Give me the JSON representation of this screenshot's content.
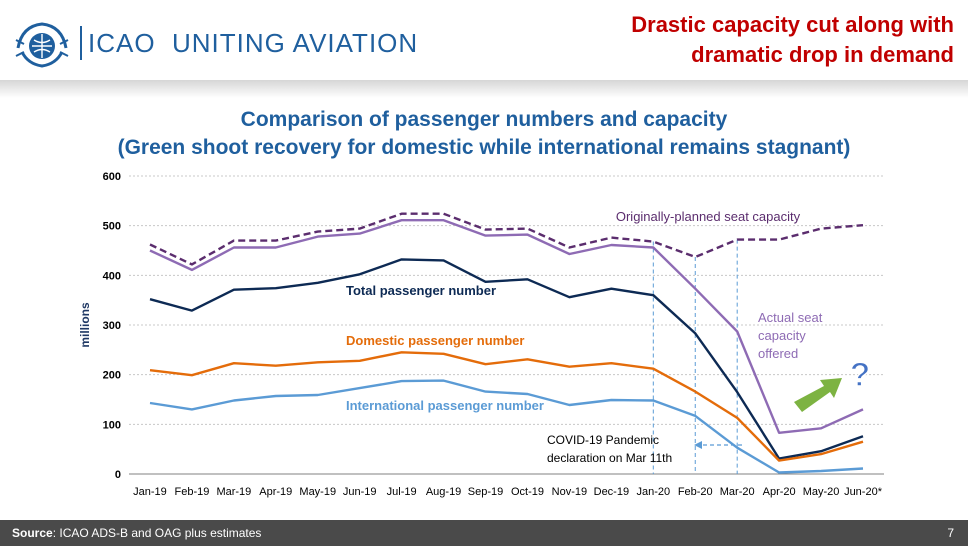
{
  "header": {
    "org": "ICAO",
    "tagline": "UNITING AVIATION",
    "headline_line1": "Drastic capacity cut along with",
    "headline_line2": "dramatic drop in demand"
  },
  "footer": {
    "source_label": "Source",
    "source_text": ": ICAO ADS-B and OAG plus estimates",
    "page_number": "7"
  },
  "colors": {
    "planned": "#5b2d6e",
    "actual": "#8e6bb4",
    "total": "#0d2a54",
    "domestic": "#e46c0a",
    "international": "#5b9bd5",
    "arrow": "#7db342",
    "question": "#4472c4"
  },
  "chart_data": {
    "type": "line",
    "title_line1": "Comparison of passenger numbers and capacity",
    "title_line2": "(Green shoot recovery for domestic while international remains stagnant)",
    "ylabel": "millions",
    "ylim": [
      0,
      600
    ],
    "yticks": [
      0,
      100,
      200,
      300,
      400,
      500,
      600
    ],
    "grid": true,
    "categories": [
      "Jan-19",
      "Feb-19",
      "Mar-19",
      "Apr-19",
      "May-19",
      "Jun-19",
      "Jul-19",
      "Aug-19",
      "Sep-19",
      "Oct-19",
      "Nov-19",
      "Dec-19",
      "Jan-20",
      "Feb-20",
      "Mar-20",
      "Apr-20",
      "May-20",
      "Jun-20*"
    ],
    "series": [
      {
        "key": "planned",
        "name": "Originally-planned seat capacity",
        "values": [
          462,
          422,
          470,
          470,
          488,
          494,
          524,
          524,
          492,
          494,
          456,
          476,
          468,
          437,
          472,
          472,
          494,
          501
        ]
      },
      {
        "key": "actual",
        "name": "Actual seat capacity offered",
        "values": [
          450,
          411,
          456,
          456,
          478,
          484,
          511,
          511,
          480,
          482,
          443,
          461,
          456,
          373,
          287,
          83,
          92,
          130
        ]
      },
      {
        "key": "total",
        "name": "Total passenger number",
        "values": [
          352,
          329,
          371,
          374,
          385,
          402,
          432,
          430,
          387,
          392,
          356,
          373,
          360,
          283,
          165,
          31,
          46,
          76
        ]
      },
      {
        "key": "domestic",
        "name": "Domestic passenger number",
        "values": [
          209,
          199,
          223,
          218,
          225,
          228,
          245,
          242,
          221,
          231,
          216,
          223,
          212,
          166,
          113,
          27,
          40,
          65
        ]
      },
      {
        "key": "international",
        "name": "International passenger number",
        "values": [
          143,
          130,
          148,
          157,
          159,
          173,
          187,
          188,
          166,
          161,
          139,
          149,
          148,
          117,
          53,
          3,
          6,
          11
        ]
      }
    ],
    "annotations": {
      "planned_label": "Originally-planned seat capacity",
      "actual_label_l1": "Actual seat",
      "actual_label_l2": "capacity",
      "actual_label_l3": "offered",
      "total_label": "Total passenger number",
      "domestic_label": "Domestic passenger number",
      "international_label": "International passenger number",
      "covid_line1": "COVID-19 Pandemic",
      "covid_line2": "declaration on Mar 11th",
      "question_mark": "?"
    }
  }
}
